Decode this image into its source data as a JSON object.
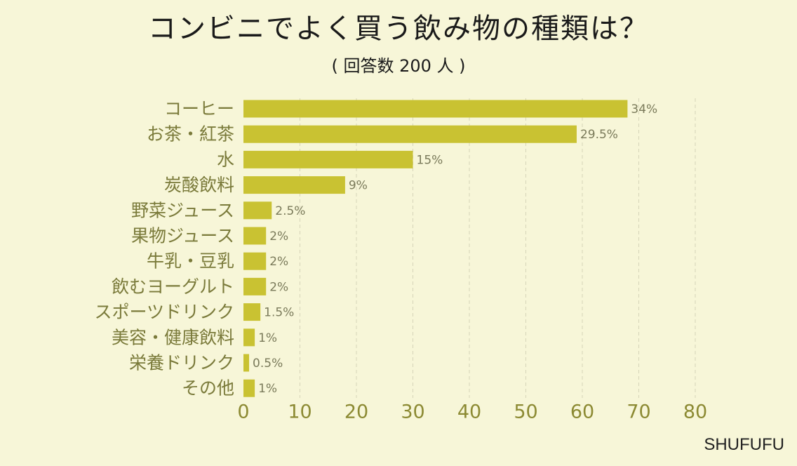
{
  "title": "コンビニでよく買う飲み物の種類は？",
  "subtitle": "( 回答数 200 人 )",
  "brand": "SHUFUFU",
  "colors": {
    "bar": "#c9c232",
    "background": "#f7f6d8",
    "axis_text": "#8c8a33",
    "label_text": "#7a7a3a",
    "value_text": "#7a7a5a",
    "grid": "#d6d4b8"
  },
  "chart_data": {
    "type": "bar",
    "orientation": "horizontal",
    "categories": [
      "コーヒー",
      "お茶・紅茶",
      "水",
      "炭酸飲料",
      "野菜ジュース",
      "果物ジュース",
      "牛乳・豆乳",
      "飲むヨーグルト",
      "スポーツドリンク",
      "美容・健康飲料",
      "栄養ドリンク",
      "その他"
    ],
    "values": [
      68,
      59,
      30,
      18,
      5,
      4,
      4,
      4,
      3,
      2,
      1,
      2
    ],
    "data_labels": [
      "34%",
      "29.5%",
      "15%",
      "9%",
      "2.5%",
      "2%",
      "2%",
      "2%",
      "1.5%",
      "1%",
      "0.5%",
      "1%"
    ],
    "xlim": [
      0,
      80
    ],
    "xticks": [
      0,
      10,
      20,
      30,
      40,
      50,
      60,
      70,
      80
    ],
    "grid": "vertical dashed"
  }
}
